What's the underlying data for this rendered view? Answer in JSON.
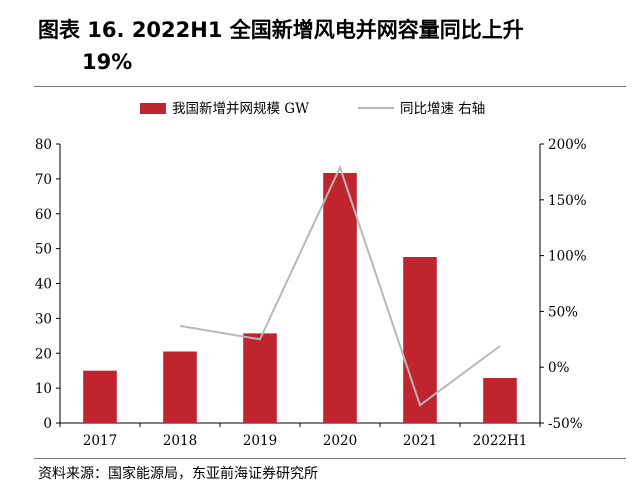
{
  "title": {
    "line1": "图表 16. 2022H1 全国新增风电并网容量同比上升",
    "line2": "19%"
  },
  "source": "资料来源：国家能源局，东亚前海证券研究所",
  "chart_data": {
    "type": "bar",
    "categories": [
      "2017",
      "2018",
      "2019",
      "2020",
      "2021",
      "2022H1"
    ],
    "series": [
      {
        "name": "我国新增并网规模 GW",
        "type": "bar",
        "axis": "left",
        "color": "#c0242e",
        "values": [
          15,
          20.5,
          25.7,
          71.7,
          47.6,
          12.9
        ]
      },
      {
        "name": "同比增速 右轴",
        "type": "line",
        "axis": "right",
        "color": "#b8b8b8",
        "values": [
          null,
          37,
          25,
          179,
          -34,
          19
        ]
      }
    ],
    "ylim_left": [
      0,
      80
    ],
    "yticks_left": [
      "0",
      "10",
      "20",
      "30",
      "40",
      "50",
      "60",
      "70",
      "80"
    ],
    "ylim_right": [
      -50,
      200
    ],
    "yticks_right": [
      "-50%",
      "0%",
      "50%",
      "100%",
      "150%",
      "200%"
    ],
    "legend_position": "top",
    "grid": false
  }
}
